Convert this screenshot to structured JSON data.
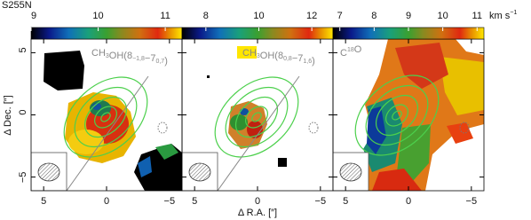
{
  "chart_data": [
    {
      "type": "map",
      "title": "S255N",
      "label_parts": [
        "CH",
        "3",
        "OH(8",
        "−1,8",
        "−7",
        "0,7",
        ")"
      ],
      "colorbar": {
        "lim": [
          9,
          11.25
        ],
        "ticks": [
          9,
          10,
          11
        ]
      },
      "x_label": "Δ R.A. [″]",
      "y_label": "Δ Dec. [″]",
      "xlim": [
        6,
        -6
      ],
      "ylim": [
        -6.1,
        6.1
      ],
      "xticks": [
        5,
        0,
        {
          "value": -5,
          "label": "−5"
        }
      ],
      "yticks": [
        5,
        0,
        {
          "value": -5,
          "label": "−5"
        }
      ]
    },
    {
      "type": "map",
      "label_parts": [
        "CH",
        "3",
        "OH(8",
        "0,8",
        "−7",
        "1,6",
        ")"
      ],
      "colorbar": {
        "lim": [
          7.1,
          12.8
        ],
        "ticks": [
          8,
          10,
          12
        ]
      },
      "xlim": [
        6,
        -6
      ],
      "ylim": [
        -6.1,
        6.1
      ],
      "xticks": [
        5,
        0,
        {
          "value": -5,
          "label": "−5"
        }
      ],
      "yticks": [
        5,
        0,
        {
          "value": -5,
          "label": "−5"
        }
      ]
    },
    {
      "type": "map",
      "label_parts": [
        "C",
        "18",
        "O"
      ],
      "colorbar": {
        "lim": [
          6.8,
          11.2
        ],
        "ticks": [
          7,
          8,
          9,
          10,
          11
        ],
        "unit_parts": [
          "km s",
          "−1"
        ]
      },
      "xlim": [
        6,
        -6
      ],
      "ylim": [
        -6.1,
        6.1
      ],
      "xticks": [
        5,
        0,
        {
          "value": -5,
          "label": "−5"
        }
      ],
      "yticks": [
        5,
        0,
        {
          "value": -5,
          "label": "−5"
        }
      ]
    }
  ]
}
